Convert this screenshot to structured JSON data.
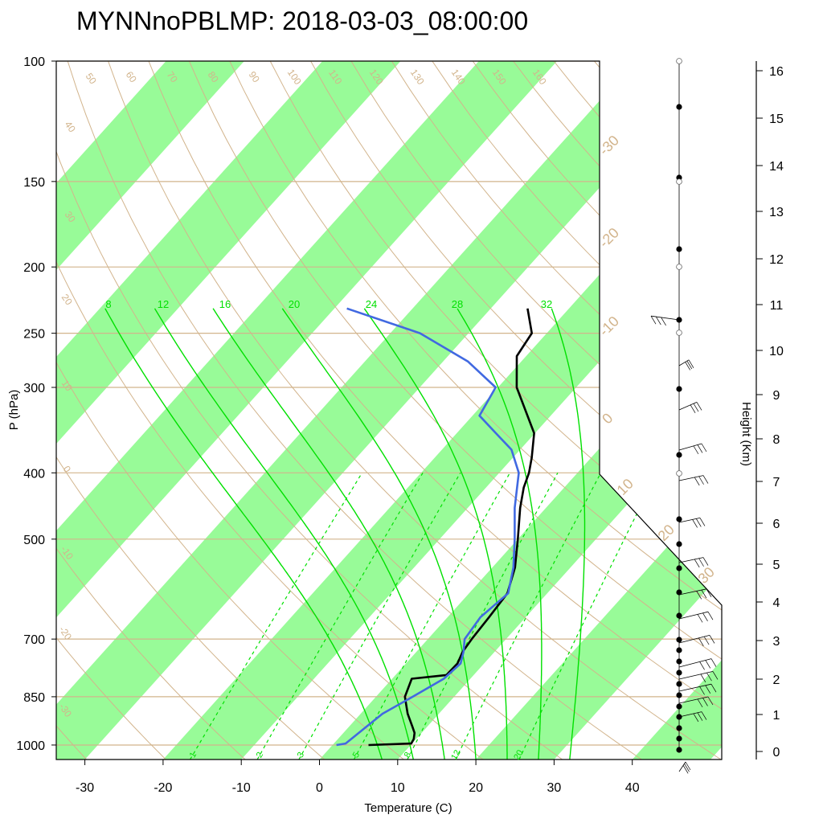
{
  "title": "MYNNnoPBLMP: 2018-03-03_08:00:00",
  "chart_data": {
    "type": "line",
    "diagram": "skew-T log-P",
    "title": "MYNNnoPBLMP: 2018-03-03_08:00:00",
    "xlabel": "Temperature (C)",
    "ylabel": "P (hPa)",
    "y2label": "Height (Km)",
    "pressure_scale": "log",
    "pressure_range": [
      1050,
      100
    ],
    "x_ticks": [
      -30,
      -20,
      -10,
      0,
      10,
      20,
      30,
      40
    ],
    "pressure_ticks": [
      100,
      150,
      200,
      250,
      300,
      400,
      500,
      700,
      850,
      1000
    ],
    "height_ticks": [
      0,
      1,
      2,
      3,
      4,
      5,
      6,
      7,
      8,
      9,
      10,
      11,
      12,
      13,
      14,
      15,
      16
    ],
    "temperature_band_color": "#98fb98",
    "isobar_color": "#d2b48c",
    "adiabat_color": "#d2b48c",
    "moist_adiabat_color": "#00e000",
    "mixing_ratio_color": "#00e000",
    "dry_adiabat_labels": [
      "50",
      "60",
      "70",
      "80",
      "90",
      "100",
      "110",
      "120",
      "130",
      "140",
      "150",
      "160",
      "40",
      "30",
      "20",
      "10",
      "0",
      "-10",
      "-20",
      "-30"
    ],
    "isotherm_labels": [
      "-30",
      "-20",
      "-10",
      "0",
      "10",
      "20",
      "30"
    ],
    "moist_adiabat_labels": [
      "8",
      "12",
      "16",
      "20",
      "24",
      "28",
      "32"
    ],
    "mixing_ratio_labels": [
      "1",
      "2",
      "3",
      "5",
      "8",
      "12",
      "20"
    ],
    "series": [
      {
        "name": "Temperature",
        "color": "#000000",
        "pressure": [
          1000,
          995,
          980,
          960,
          940,
          900,
          850,
          800,
          790,
          760,
          730,
          700,
          650,
          600,
          550,
          500,
          450,
          420,
          400,
          380,
          350,
          300,
          270,
          250,
          230
        ],
        "temperature": [
          4.6,
          9.9,
          9.7,
          9.1,
          8.1,
          6.0,
          3.7,
          2.5,
          6.5,
          6.6,
          5.9,
          5.6,
          5.3,
          4.9,
          2.9,
          0.0,
          -3.3,
          -5.2,
          -6.2,
          -7.6,
          -10.1,
          -17.6,
          -21.2,
          -21.9,
          -25.3
        ]
      },
      {
        "name": "Dewpoint",
        "color": "#4169e1",
        "pressure": [
          1000,
          995,
          980,
          950,
          900,
          850,
          800,
          760,
          730,
          700,
          650,
          600,
          550,
          500,
          450,
          400,
          370,
          350,
          330,
          300,
          275,
          250,
          230
        ],
        "temperature": [
          0.5,
          1.5,
          1.7,
          2.1,
          2.8,
          4.7,
          6.6,
          7.0,
          6.0,
          4.7,
          4.2,
          5.0,
          2.7,
          -0.4,
          -4.0,
          -7.5,
          -11.1,
          -15.0,
          -19.1,
          -20.3,
          -26.8,
          -36.2,
          -48.4
        ]
      }
    ]
  }
}
